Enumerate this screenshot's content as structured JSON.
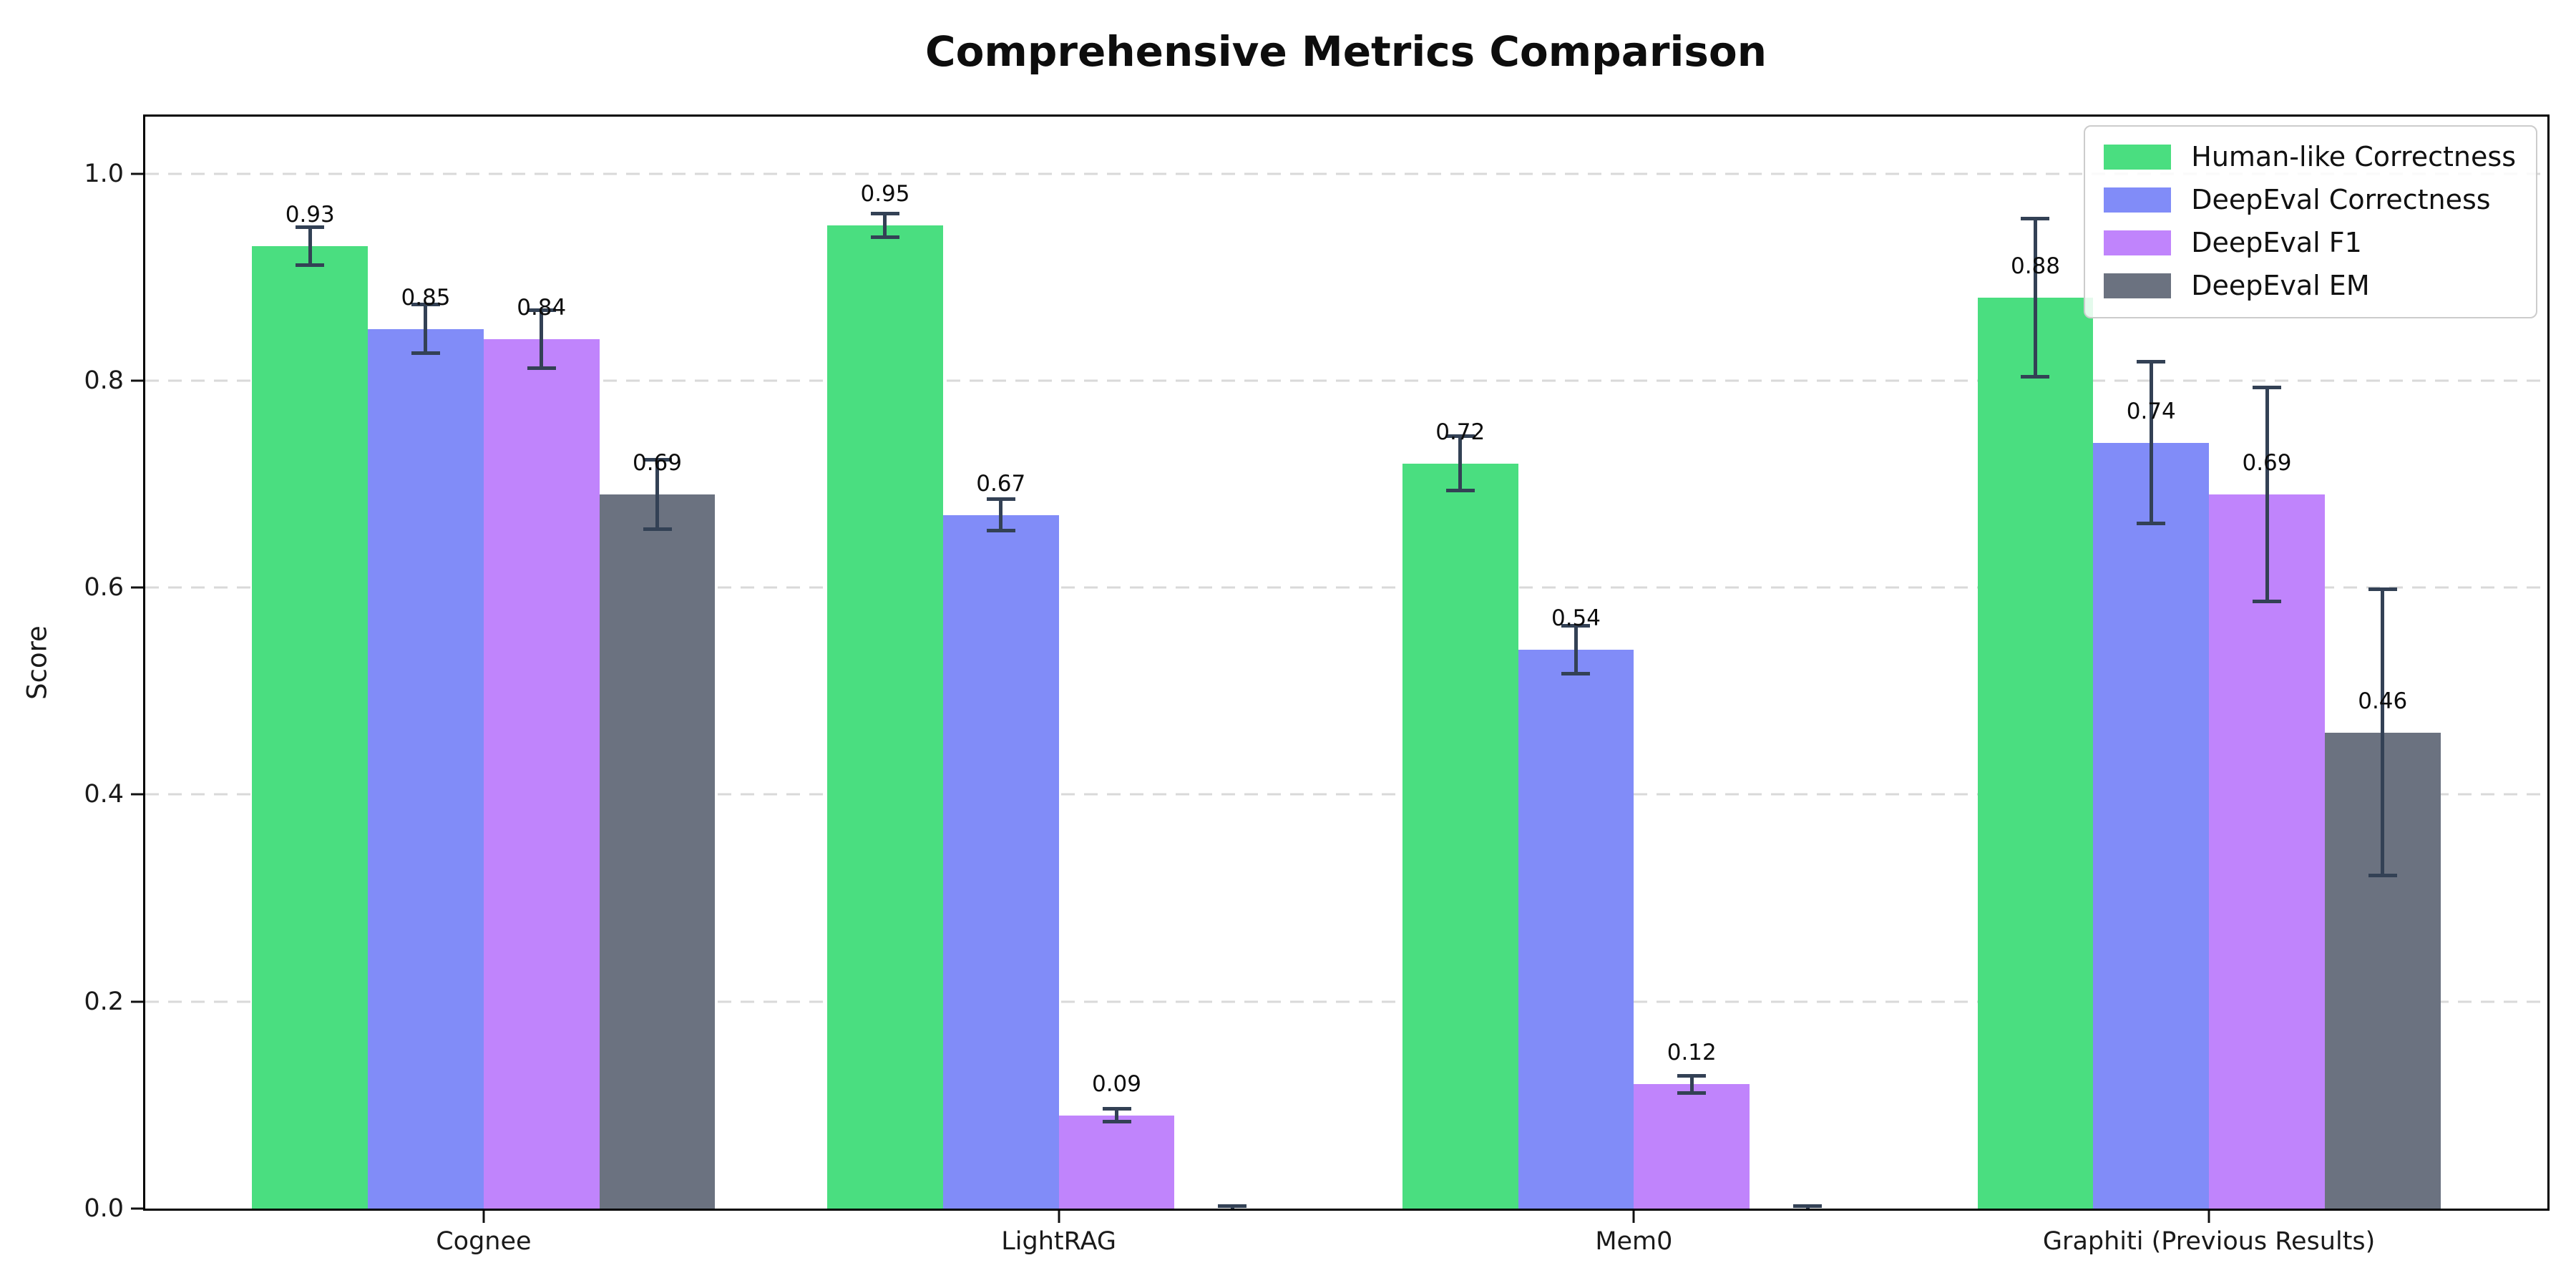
{
  "title": "Comprehensive Metrics Comparison",
  "ylabel": "Score",
  "chart_data": {
    "type": "bar",
    "categories": [
      "Cognee",
      "LightRAG",
      "Mem0",
      "Graphiti (Previous Results)"
    ],
    "series": [
      {
        "name": "Human-like Correctness",
        "color": "#4ade80",
        "values": [
          0.93,
          0.95,
          0.72,
          0.88
        ],
        "errors": [
          0.02,
          0.013,
          0.028,
          0.078
        ],
        "labels": [
          "0.93",
          "0.95",
          "0.72",
          "0.88"
        ]
      },
      {
        "name": "DeepEval Correctness",
        "color": "#818cf8",
        "values": [
          0.85,
          0.67,
          0.54,
          0.74
        ],
        "errors": [
          0.025,
          0.017,
          0.025,
          0.08
        ],
        "labels": [
          "0.85",
          "0.67",
          "0.54",
          "0.74"
        ]
      },
      {
        "name": "DeepEval F1",
        "color": "#c084fc",
        "values": [
          0.84,
          0.09,
          0.12,
          0.69
        ],
        "errors": [
          0.03,
          0.008,
          0.01,
          0.105
        ],
        "labels": [
          "0.84",
          "0.09",
          "0.12",
          "0.69"
        ]
      },
      {
        "name": "DeepEval EM",
        "color": "#6b7280",
        "values": [
          0.69,
          0.0,
          0.0,
          0.46
        ],
        "errors": [
          0.035,
          0.004,
          0.004,
          0.14
        ],
        "labels": [
          "0.69",
          "",
          "",
          "0.46"
        ]
      }
    ],
    "title": "Comprehensive Metrics Comparison",
    "xlabel": "",
    "ylabel": "Score",
    "ylim": [
      0,
      1.05
    ],
    "yticks": [
      "0.0",
      "0.2",
      "0.4",
      "0.6",
      "0.8",
      "1.0"
    ],
    "grid": "horizontal dashed",
    "legend_position": "upper right",
    "error_bar_color": "#334155",
    "grid_color": "#d9d9d9"
  }
}
